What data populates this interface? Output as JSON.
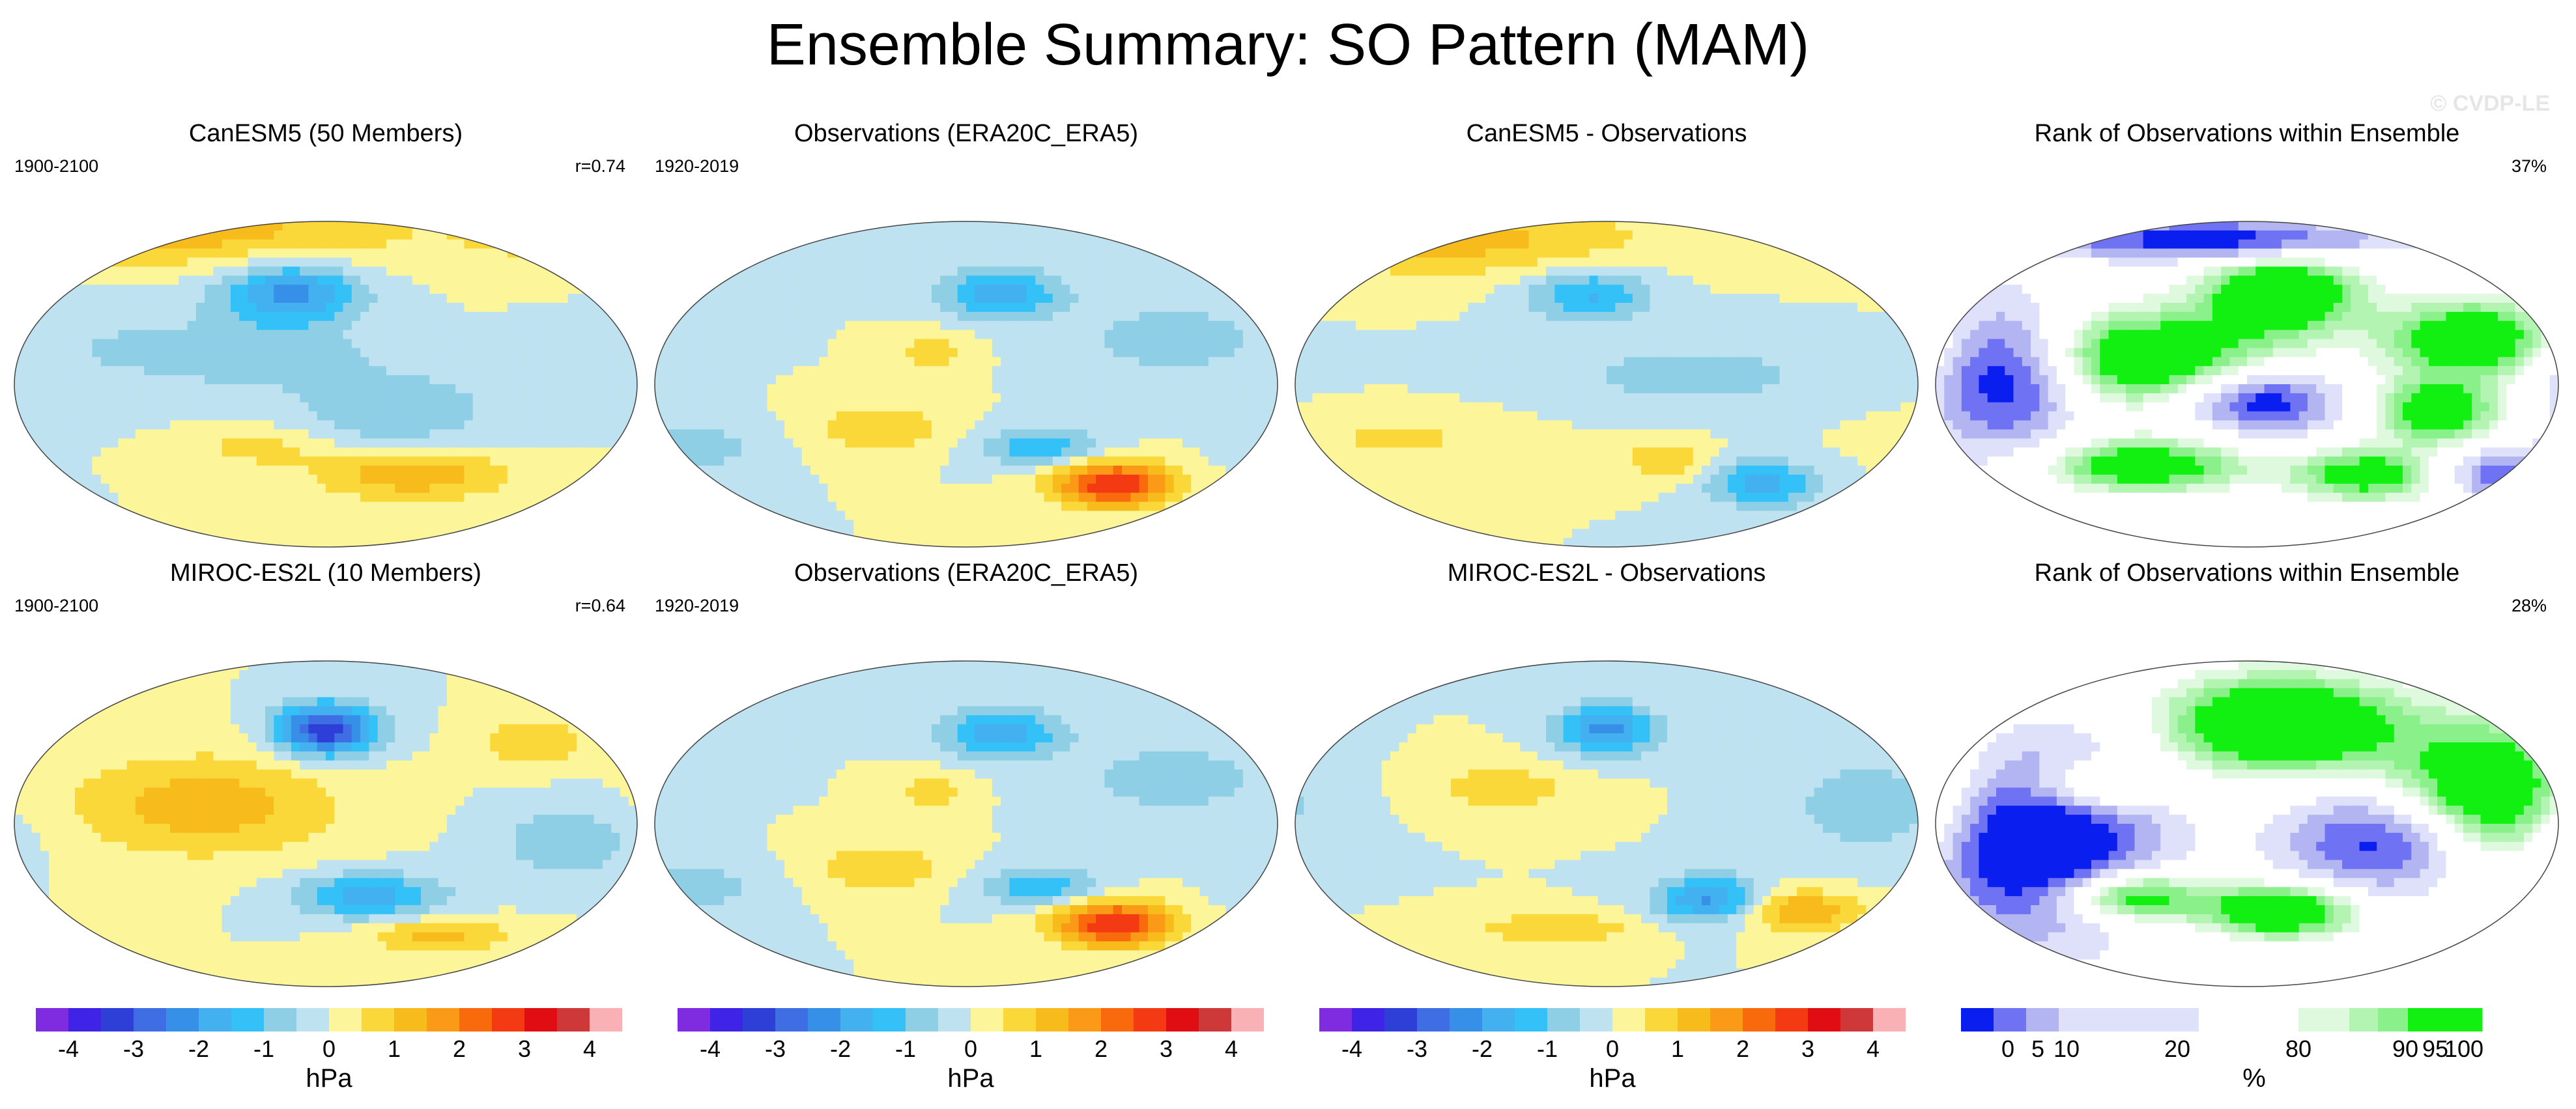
{
  "title": "Ensemble Summary: SO Pattern (MAM)",
  "watermark": "© CVDP-LE",
  "colors": {
    "diverging": [
      "#7f2be0",
      "#3f23e6",
      "#2e3fd8",
      "#3f6ee4",
      "#3790e8",
      "#43b0f0",
      "#33c1f7",
      "#8fcfe6",
      "#bfe2f1",
      "#fdf59a",
      "#fbd83a",
      "#f8bb1c",
      "#fa9a16",
      "#f86a0c",
      "#f33a13",
      "#e00d12",
      "#cf3838",
      "#f9b1b5"
    ],
    "rank": [
      "#0b1ef0",
      "#6f72f3",
      "#b3b5f2",
      "#dfe0fa",
      "#ffffff",
      "#dff9df",
      "#b3f4b3",
      "#8af08a",
      "#12f012"
    ]
  },
  "panels": [
    {
      "title": "CanESM5 (50 Members)",
      "left": "1900-2100",
      "right": "r=0.74",
      "kind": "pattern"
    },
    {
      "title": "Observations (ERA20C_ERA5)",
      "left": "1920-2019",
      "right": "",
      "kind": "pattern"
    },
    {
      "title": "CanESM5 - Observations",
      "left": "",
      "right": "",
      "kind": "pattern"
    },
    {
      "title": "Rank of Observations within Ensemble",
      "left": "",
      "right": "37%",
      "kind": "rank"
    },
    {
      "title": "MIROC-ES2L (10 Members)",
      "left": "1900-2100",
      "right": "r=0.64",
      "kind": "pattern"
    },
    {
      "title": "Observations (ERA20C_ERA5)",
      "left": "1920-2019",
      "right": "",
      "kind": "pattern"
    },
    {
      "title": "MIROC-ES2L - Observations",
      "left": "",
      "right": "",
      "kind": "pattern"
    },
    {
      "title": "Rank of Observations within Ensemble",
      "left": "",
      "right": "28%",
      "kind": "rank"
    }
  ],
  "colorbars": [
    {
      "ticks": [
        "-4",
        "-3",
        "-2",
        "-1",
        "0",
        "1",
        "2",
        "3",
        "4"
      ],
      "units": "hPa"
    },
    {
      "ticks": [
        "-4",
        "-3",
        "-2",
        "-1",
        "0",
        "1",
        "2",
        "3",
        "4"
      ],
      "units": "hPa"
    },
    {
      "ticks": [
        "-4",
        "-3",
        "-2",
        "-1",
        "0",
        "1",
        "2",
        "3",
        "4"
      ],
      "units": "hPa"
    },
    {
      "ticks": [
        "0",
        "5",
        "10",
        "20",
        "80",
        "90",
        "95",
        "100"
      ],
      "units": "%"
    }
  ],
  "chart_data": {
    "type": "heatmap",
    "title": "Ensemble Summary: SO Pattern (MAM)",
    "projection": "Robinson",
    "levels_hPa": [
      -4,
      -3.5,
      -3,
      -2.5,
      -2,
      -1.5,
      -1,
      -0.5,
      0,
      0.5,
      1,
      1.5,
      2,
      2.5,
      3,
      3.5,
      4
    ],
    "rank_levels_percent": [
      0,
      5,
      10,
      20,
      80,
      90,
      95,
      100
    ],
    "fields": [
      {
        "name": "CanESM5 (50 Members)",
        "units": "hPa",
        "blobs": [
          {
            "lon": 160,
            "lat": 50,
            "amp": -2.2,
            "slon": 28,
            "slat": 12
          },
          {
            "lon": 60,
            "lat": 85,
            "amp": 1.4,
            "slon": 120,
            "slat": 14
          },
          {
            "lon": 230,
            "lat": -50,
            "amp": 1.4,
            "slon": 40,
            "slat": 10
          },
          {
            "lon": 140,
            "lat": -35,
            "amp": 0.7,
            "slon": 30,
            "slat": 8
          },
          {
            "lon": 220,
            "lat": -15,
            "amp": -1.0,
            "slon": 40,
            "slat": 15
          },
          {
            "lon": 150,
            "lat": 15,
            "amp": -0.8,
            "slon": 40,
            "slat": 12
          },
          {
            "lon": 60,
            "lat": 20,
            "amp": -0.5,
            "slon": 50,
            "slat": 20
          }
        ]
      },
      {
        "name": "Observations (ERA20C_ERA5)",
        "units": "hPa",
        "blobs": [
          {
            "lon": 200,
            "lat": 50,
            "amp": -1.8,
            "slon": 25,
            "slat": 10
          },
          {
            "lon": 265,
            "lat": -55,
            "amp": 3.0,
            "slon": 25,
            "slat": 9
          },
          {
            "lon": 225,
            "lat": -35,
            "amp": -1.4,
            "slon": 25,
            "slat": 8
          },
          {
            "lon": 130,
            "lat": -25,
            "amp": 1.0,
            "slon": 25,
            "slat": 10
          },
          {
            "lon": 160,
            "lat": 18,
            "amp": 0.8,
            "slon": 15,
            "slat": 8
          },
          {
            "lon": 300,
            "lat": 25,
            "amp": -0.8,
            "slon": 40,
            "slat": 15
          },
          {
            "lon": 20,
            "lat": -35,
            "amp": -0.8,
            "slon": 30,
            "slat": 10
          }
        ]
      },
      {
        "name": "CanESM5 - Observations",
        "units": "hPa",
        "blobs": [
          {
            "lon": 170,
            "lat": 50,
            "amp": -1.6,
            "slon": 25,
            "slat": 10
          },
          {
            "lon": 270,
            "lat": -55,
            "amp": -1.8,
            "slon": 22,
            "slat": 9
          },
          {
            "lon": 215,
            "lat": -42,
            "amp": 1.0,
            "slon": 18,
            "slat": 8
          },
          {
            "lon": 90,
            "lat": 80,
            "amp": 1.2,
            "slon": 80,
            "slat": 14
          },
          {
            "lon": 230,
            "lat": 5,
            "amp": -0.7,
            "slon": 60,
            "slat": 15
          },
          {
            "lon": 60,
            "lat": -30,
            "amp": 0.6,
            "slon": 50,
            "slat": 10
          }
        ]
      },
      {
        "name": "MIROC-ES2L (10 Members)",
        "units": "hPa",
        "blobs": [
          {
            "lon": 180,
            "lat": 52,
            "amp": -3.5,
            "slon": 20,
            "slat": 10
          },
          {
            "lon": 110,
            "lat": 10,
            "amp": 1.3,
            "slon": 55,
            "slat": 20
          },
          {
            "lon": 205,
            "lat": -40,
            "amp": -1.8,
            "slon": 30,
            "slat": 9
          },
          {
            "lon": 245,
            "lat": -62,
            "amp": 1.2,
            "slon": 30,
            "slat": 7
          },
          {
            "lon": 300,
            "lat": 45,
            "amp": 1.0,
            "slon": 20,
            "slat": 10
          },
          {
            "lon": 320,
            "lat": -10,
            "amp": -0.9,
            "slon": 30,
            "slat": 15
          }
        ]
      },
      {
        "name": "Observations (ERA20C_ERA5)",
        "units": "hPa",
        "blobs": [
          {
            "lon": 200,
            "lat": 50,
            "amp": -1.8,
            "slon": 25,
            "slat": 10
          },
          {
            "lon": 265,
            "lat": -55,
            "amp": 3.0,
            "slon": 25,
            "slat": 9
          },
          {
            "lon": 225,
            "lat": -35,
            "amp": -1.4,
            "slon": 25,
            "slat": 8
          },
          {
            "lon": 130,
            "lat": -25,
            "amp": 1.0,
            "slon": 25,
            "slat": 10
          },
          {
            "lon": 160,
            "lat": 18,
            "amp": 0.8,
            "slon": 15,
            "slat": 8
          },
          {
            "lon": 300,
            "lat": 25,
            "amp": -0.8,
            "slon": 40,
            "slat": 15
          },
          {
            "lon": 20,
            "lat": -35,
            "amp": -0.8,
            "slon": 30,
            "slat": 10
          }
        ]
      },
      {
        "name": "MIROC-ES2L - Observations",
        "units": "hPa",
        "blobs": [
          {
            "lon": 180,
            "lat": 52,
            "amp": -2.2,
            "slon": 20,
            "slat": 10
          },
          {
            "lon": 240,
            "lat": -42,
            "amp": -2.2,
            "slon": 22,
            "slat": 9
          },
          {
            "lon": 290,
            "lat": -48,
            "amp": 1.6,
            "slon": 25,
            "slat": 8
          },
          {
            "lon": 150,
            "lat": -58,
            "amp": 1.0,
            "slon": 35,
            "slat": 6
          },
          {
            "lon": 120,
            "lat": 20,
            "amp": 0.8,
            "slon": 30,
            "slat": 10
          },
          {
            "lon": 330,
            "lat": 10,
            "amp": -0.8,
            "slon": 35,
            "slat": 20
          }
        ]
      },
      {
        "name": "Rank of Observations within Ensemble (CanESM5)",
        "units": "%",
        "blobs": [
          {
            "lon": 40,
            "lat": 5,
            "amp": -1.6,
            "slon": 30,
            "slat": 28
          },
          {
            "lon": 200,
            "lat": 50,
            "amp": 1.6,
            "slon": 30,
            "slat": 15
          },
          {
            "lon": 120,
            "lat": 15,
            "amp": 1.4,
            "slon": 50,
            "slat": 18
          },
          {
            "lon": 310,
            "lat": 25,
            "amp": 1.4,
            "slon": 35,
            "slat": 15
          },
          {
            "lon": 190,
            "lat": -10,
            "amp": -1.5,
            "slon": 30,
            "slat": 12
          },
          {
            "lon": 290,
            "lat": -15,
            "amp": 1.3,
            "slon": 25,
            "slat": 12
          },
          {
            "lon": 120,
            "lat": -45,
            "amp": 1.3,
            "slon": 40,
            "slat": 10
          },
          {
            "lon": 250,
            "lat": -50,
            "amp": 1.2,
            "slon": 30,
            "slat": 10
          },
          {
            "lon": 160,
            "lat": 80,
            "amp": -1.5,
            "slon": 70,
            "slat": 8
          },
          {
            "lon": 330,
            "lat": -50,
            "amp": -1.2,
            "slon": 25,
            "slat": 10
          }
        ]
      },
      {
        "name": "Rank of Observations within Ensemble (MIROC-ES2L)",
        "units": "%",
        "blobs": [
          {
            "lon": 60,
            "lat": -10,
            "amp": -2.0,
            "slon": 45,
            "slat": 35
          },
          {
            "lon": 200,
            "lat": 55,
            "amp": 1.8,
            "slon": 45,
            "slat": 18
          },
          {
            "lon": 320,
            "lat": 15,
            "amp": 1.7,
            "slon": 40,
            "slat": 28
          },
          {
            "lon": 110,
            "lat": -40,
            "amp": 1.6,
            "slon": 30,
            "slat": 10
          },
          {
            "lon": 200,
            "lat": -48,
            "amp": 1.6,
            "slon": 30,
            "slat": 10
          },
          {
            "lon": 90,
            "lat": 20,
            "amp": 1.2,
            "slon": 25,
            "slat": 10
          },
          {
            "lon": 260,
            "lat": -10,
            "amp": -1.5,
            "slon": 40,
            "slat": 20
          }
        ]
      }
    ]
  }
}
